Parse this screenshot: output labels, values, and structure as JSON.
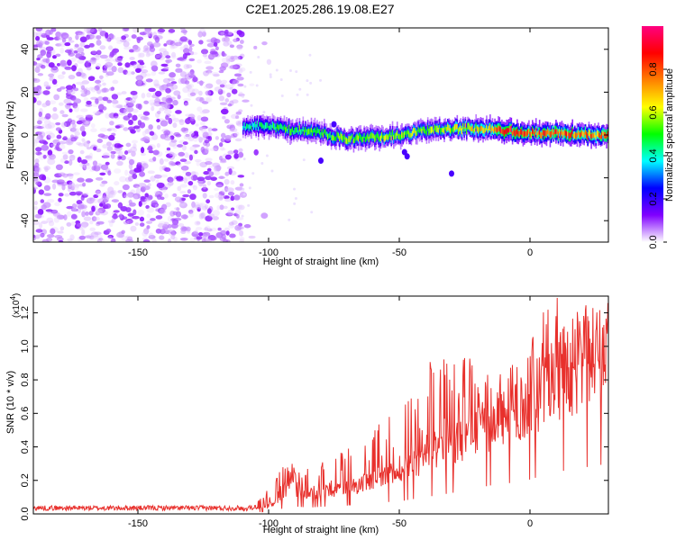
{
  "chart_data": [
    {
      "type": "heatmap",
      "title": "C2E1.2025.286.19.08.E27",
      "xlabel": "Height of straight line (km)",
      "ylabel": "Frequency (Hz)",
      "xlim": [
        -190,
        30
      ],
      "ylim": [
        -50,
        50
      ],
      "xticks": [
        "-150",
        "-100",
        "-50",
        "0"
      ],
      "xtick_values": [
        -150,
        -100,
        -50,
        0
      ],
      "yticks": [
        "-40",
        "-20",
        "0",
        "20",
        "40"
      ],
      "ytick_values": [
        -40,
        -20,
        0,
        20,
        40
      ],
      "colorbar": {
        "label": "Normalized spectral amplitude",
        "range": [
          0,
          1
        ],
        "ticks": [
          "0.0",
          "0.2",
          "0.4",
          "0.6",
          "0.8"
        ],
        "tick_values": [
          0.0,
          0.2,
          0.4,
          0.6,
          0.8
        ],
        "colors": [
          "#ffffff",
          "#8000ff",
          "#0000ff",
          "#00ffff",
          "#00ff00",
          "#ffff00",
          "#ff8000",
          "#ff0000",
          "#ff0080"
        ]
      },
      "noise_region_x": [
        -190,
        -110
      ],
      "signal_band": {
        "x": [
          -110,
          -100,
          -90,
          -80,
          -70,
          -60,
          -50,
          -40,
          -30,
          -20,
          -10,
          0,
          10,
          20,
          30
        ],
        "center_freq": [
          4,
          4,
          2,
          1,
          -2,
          -1,
          0,
          2,
          3,
          3,
          2,
          1,
          1,
          0,
          0
        ],
        "peak_amplitude": [
          0.45,
          0.5,
          0.55,
          0.55,
          0.6,
          0.6,
          0.62,
          0.65,
          0.65,
          0.7,
          0.95,
          0.9,
          0.88,
          0.85,
          0.85
        ]
      }
    },
    {
      "type": "line",
      "xlabel": "Height of straight line (km)",
      "ylabel": "SNR (10 * v/v)",
      "scale_label": "(x10",
      "scale_exponent": "4",
      "scale_suffix": ")",
      "xlim": [
        -190,
        30
      ],
      "ylim": [
        0,
        1.3
      ],
      "xticks": [
        "-150",
        "-100",
        "-50",
        "0"
      ],
      "xtick_values": [
        -150,
        -100,
        -50,
        0
      ],
      "yticks": [
        "0.0",
        "0.2",
        "0.4",
        "0.6",
        "0.8",
        "1.0",
        "1.2"
      ],
      "ytick_values": [
        0.0,
        0.2,
        0.4,
        0.6,
        0.8,
        1.0,
        1.2
      ],
      "color": "#e8302c",
      "series": [
        {
          "name": "SNR",
          "x": [
            -190,
            -110,
            -105,
            -100,
            -95,
            -92,
            -90,
            -85,
            -80,
            -75,
            -70,
            -65,
            -60,
            -55,
            -50,
            -45,
            -40,
            -35,
            -30,
            -25,
            -20,
            -15,
            -10,
            -5,
            0,
            5,
            10,
            15,
            20,
            25,
            30
          ],
          "baseline": [
            0.03,
            0.03,
            0.04,
            0.06,
            0.12,
            0.25,
            0.18,
            0.15,
            0.17,
            0.18,
            0.2,
            0.22,
            0.25,
            0.28,
            0.3,
            0.35,
            0.4,
            0.45,
            0.5,
            0.55,
            0.62,
            0.68,
            0.72,
            0.76,
            0.82,
            0.92,
            1.0,
            1.05,
            1.1,
            1.15,
            1.2
          ],
          "peak": [
            0.04,
            0.04,
            0.06,
            0.15,
            0.3,
            0.33,
            0.28,
            0.3,
            0.32,
            0.35,
            0.4,
            0.45,
            0.5,
            0.6,
            0.7,
            0.82,
            0.95,
            1.0,
            0.88,
            1.05,
            0.8,
            0.92,
            0.9,
            0.95,
            1.05,
            1.2,
            1.3,
            1.28,
            1.25,
            1.28,
            1.3
          ]
        }
      ]
    }
  ]
}
